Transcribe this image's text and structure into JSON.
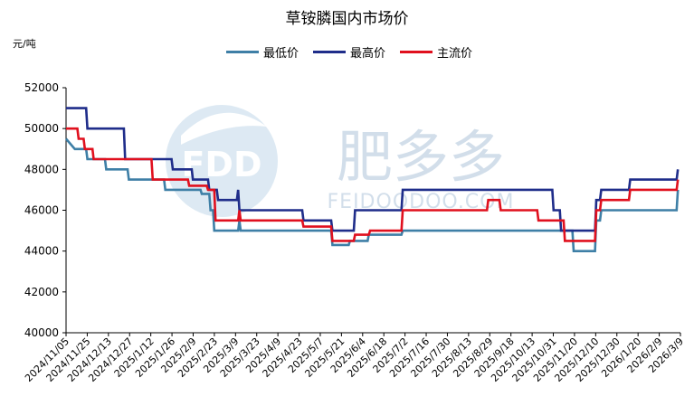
{
  "chart_data": {
    "type": "line",
    "title": "草铵膦国内市场价",
    "unit": "元/吨",
    "ylim": [
      40000,
      52000
    ],
    "yticks": [
      40000,
      42000,
      44000,
      46000,
      48000,
      50000,
      52000
    ],
    "x_tick_labels": [
      "2024/11/05",
      "2024/11/25",
      "2024/12/13",
      "2024/12/27",
      "2025/1/12",
      "2025/1/26",
      "2025/2/9",
      "2025/2/23",
      "2025/3/9",
      "2025/3/23",
      "2025/4/9",
      "2025/4/23",
      "2025/5/7",
      "2025/5/21",
      "2025/6/4",
      "2025/6/18",
      "2025/7/2",
      "2025/7/16",
      "2025/7/30",
      "2025/8/13",
      "2025/8/29",
      "2025/9/18",
      "2025/10/13",
      "2025/10/31",
      "2025/11/20",
      "2025/12/10",
      "2025/12/30",
      "2026/1/20",
      "2026/2/9",
      "2026/3/9"
    ],
    "x_range": [
      "2024/11/05",
      "2026/3/9"
    ],
    "legend_position": "top",
    "grid": false,
    "watermark": "肥多多 FEIDOODOO.COM",
    "series": [
      {
        "name": "最低价",
        "color": "#3e7fa6",
        "points": [
          [
            "2024/11/05",
            49500
          ],
          [
            "2024/11/12",
            49000
          ],
          [
            "2024/11/21",
            49000
          ],
          [
            "2024/11/22",
            48500
          ],
          [
            "2024/12/06",
            48500
          ],
          [
            "2024/12/07",
            48000
          ],
          [
            "2024/12/24",
            48000
          ],
          [
            "2024/12/25",
            47500
          ],
          [
            "2025/1/22",
            47500
          ],
          [
            "2025/1/23",
            47000
          ],
          [
            "2025/2/20",
            47000
          ],
          [
            "2025/2/21",
            46800
          ],
          [
            "2025/2/27",
            46800
          ],
          [
            "2025/2/28",
            46000
          ],
          [
            "2025/3/2",
            46000
          ],
          [
            "2025/3/3",
            45000
          ],
          [
            "2025/3/22",
            45000
          ],
          [
            "2025/3/23",
            45500
          ],
          [
            "2025/3/24",
            45000
          ],
          [
            "2025/6/4",
            45000
          ],
          [
            "2025/6/5",
            44300
          ],
          [
            "2025/6/18",
            44300
          ],
          [
            "2025/6/19",
            44500
          ],
          [
            "2025/7/3",
            44500
          ],
          [
            "2025/7/4",
            44800
          ],
          [
            "2025/7/30",
            44800
          ],
          [
            "2025/7/31",
            45000
          ],
          [
            "2025/12/13",
            45000
          ],
          [
            "2025/12/14",
            44000
          ],
          [
            "2025/12/31",
            44000
          ],
          [
            "2026/1/1",
            45500
          ],
          [
            "2026/1/4",
            45500
          ],
          [
            "2026/1/5",
            46000
          ],
          [
            "2026/3/6",
            46000
          ],
          [
            "2026/3/7",
            47000
          ]
        ]
      },
      {
        "name": "最高价",
        "color": "#1f2d8a",
        "points": [
          [
            "2024/11/05",
            51000
          ],
          [
            "2024/11/21",
            51000
          ],
          [
            "2024/11/22",
            50000
          ],
          [
            "2024/12/21",
            50000
          ],
          [
            "2024/12/22",
            48500
          ],
          [
            "2025/1/28",
            48500
          ],
          [
            "2025/1/29",
            48000
          ],
          [
            "2025/2/13",
            48000
          ],
          [
            "2025/2/14",
            47500
          ],
          [
            "2025/2/26",
            47500
          ],
          [
            "2025/2/27",
            47000
          ],
          [
            "2025/3/5",
            47000
          ],
          [
            "2025/3/6",
            46500
          ],
          [
            "2025/3/21",
            46500
          ],
          [
            "2025/3/22",
            47000
          ],
          [
            "2025/3/23",
            46000
          ],
          [
            "2025/5/12",
            46000
          ],
          [
            "2025/5/13",
            45500
          ],
          [
            "2025/6/4",
            45500
          ],
          [
            "2025/6/5",
            45000
          ],
          [
            "2025/6/22",
            45000
          ],
          [
            "2025/6/23",
            46000
          ],
          [
            "2025/7/30",
            46000
          ],
          [
            "2025/7/31",
            47000
          ],
          [
            "2025/11/27",
            47000
          ],
          [
            "2025/11/28",
            46000
          ],
          [
            "2025/12/3",
            46000
          ],
          [
            "2025/12/4",
            45000
          ],
          [
            "2025/12/31",
            45000
          ],
          [
            "2026/1/1",
            46500
          ],
          [
            "2026/1/4",
            46500
          ],
          [
            "2026/1/5",
            47000
          ],
          [
            "2026/1/27",
            47000
          ],
          [
            "2026/1/28",
            47500
          ],
          [
            "2026/3/6",
            47500
          ],
          [
            "2026/3/7",
            48000
          ]
        ]
      },
      {
        "name": "主流价",
        "color": "#e0101e",
        "points": [
          [
            "2024/11/05",
            50000
          ],
          [
            "2024/11/14",
            50000
          ],
          [
            "2024/11/15",
            49500
          ],
          [
            "2024/11/19",
            49500
          ],
          [
            "2024/11/20",
            49000
          ],
          [
            "2024/11/26",
            49000
          ],
          [
            "2024/11/27",
            48500
          ],
          [
            "2025/1/12",
            48500
          ],
          [
            "2025/1/13",
            47500
          ],
          [
            "2025/2/10",
            47500
          ],
          [
            "2025/2/11",
            47200
          ],
          [
            "2025/2/25",
            47200
          ],
          [
            "2025/2/26",
            47000
          ],
          [
            "2025/3/3",
            47000
          ],
          [
            "2025/3/4",
            45500
          ],
          [
            "2025/3/22",
            45500
          ],
          [
            "2025/3/23",
            46000
          ],
          [
            "2025/3/24",
            45500
          ],
          [
            "2025/5/12",
            45500
          ],
          [
            "2025/5/13",
            45200
          ],
          [
            "2025/6/4",
            45200
          ],
          [
            "2025/6/5",
            44500
          ],
          [
            "2025/6/22",
            44500
          ],
          [
            "2025/6/23",
            44800
          ],
          [
            "2025/7/4",
            44800
          ],
          [
            "2025/7/5",
            45000
          ],
          [
            "2025/7/30",
            45000
          ],
          [
            "2025/7/31",
            46000
          ],
          [
            "2025/10/6",
            46000
          ],
          [
            "2025/10/7",
            46500
          ],
          [
            "2025/10/16",
            46500
          ],
          [
            "2025/10/17",
            46000
          ],
          [
            "2025/11/15",
            46000
          ],
          [
            "2025/11/16",
            45500
          ],
          [
            "2025/12/6",
            45500
          ],
          [
            "2025/12/7",
            44500
          ],
          [
            "2025/12/31",
            44500
          ],
          [
            "2026/1/1",
            46000
          ],
          [
            "2026/1/4",
            46000
          ],
          [
            "2026/1/5",
            46500
          ],
          [
            "2026/1/27",
            46500
          ],
          [
            "2026/1/28",
            47000
          ],
          [
            "2026/3/6",
            47000
          ],
          [
            "2026/3/7",
            47500
          ]
        ]
      }
    ]
  }
}
